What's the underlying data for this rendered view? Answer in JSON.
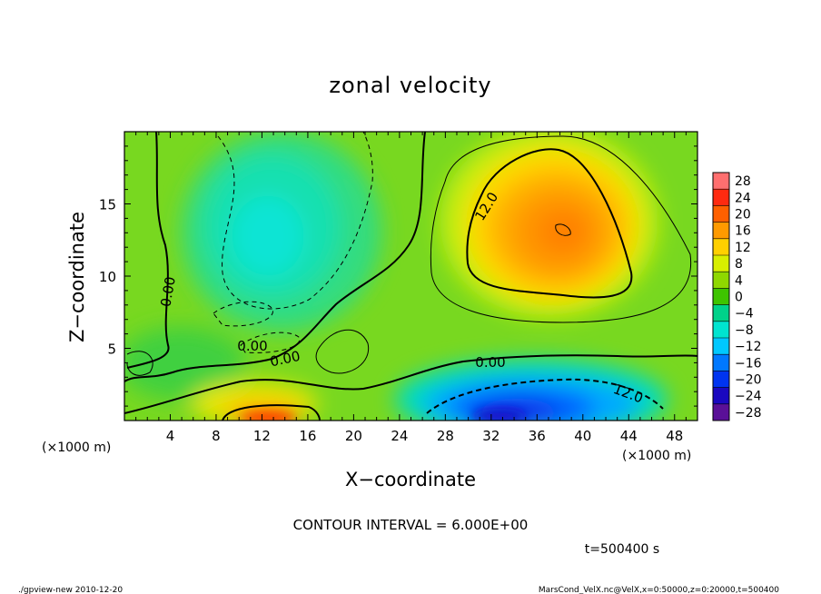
{
  "chart_data": {
    "type": "heatmap",
    "title": "zonal velocity",
    "xlabel": "X−coordinate",
    "ylabel": "Z−coordinate",
    "x_unit_left": "(×1000 m)",
    "x_unit_right": "(×1000 m)",
    "y_unit": "(×1000 m)",
    "xlim": [
      0,
      50
    ],
    "ylim": [
      0,
      20
    ],
    "x_ticks": [
      4,
      8,
      12,
      16,
      20,
      24,
      28,
      32,
      36,
      40,
      44,
      48
    ],
    "y_ticks": [
      5,
      10,
      15
    ],
    "colorbar": {
      "levels": [
        28,
        24,
        20,
        16,
        12,
        8,
        4,
        0,
        -4,
        -8,
        -12,
        -16,
        -20,
        -24,
        -28
      ],
      "labels": [
        "28",
        "24",
        "20",
        "16",
        "12",
        "8",
        "4",
        "0",
        "−4",
        "−8",
        "−12",
        "−16",
        "−20",
        "−24",
        "−28"
      ],
      "colors": [
        "#ff6f6f",
        "#ff2a10",
        "#ff6000",
        "#ff9a00",
        "#ffd000",
        "#d8ef00",
        "#8fd800",
        "#3ec400",
        "#00d28a",
        "#00e4d0",
        "#00c8ff",
        "#0078ff",
        "#0034f0",
        "#1a08c0",
        "#5a1098"
      ]
    },
    "contour_labels": [
      "12.0",
      "0.00",
      "0.00",
      "0.00",
      "0.00",
      "12.0"
    ],
    "contour_interval_text": "CONTOUR INTERVAL = 6.000E+00",
    "time_text": "t=500400 s",
    "features": [
      {
        "name": "positive jet",
        "x": 38,
        "z": 13.5,
        "value": 16
      },
      {
        "name": "negative jet",
        "x": 37,
        "z": 1.2,
        "value": -18
      },
      {
        "name": "upper negative region",
        "x": 14,
        "z": 13,
        "value": -8
      },
      {
        "name": "lower positive core",
        "x": 13,
        "z": 0.5,
        "value": 20
      }
    ]
  },
  "footer": {
    "left": "./gpview-new  2010-12-20",
    "right": "MarsCond_VelX.nc@VelX,x=0:50000,z=0:20000,t=500400"
  }
}
